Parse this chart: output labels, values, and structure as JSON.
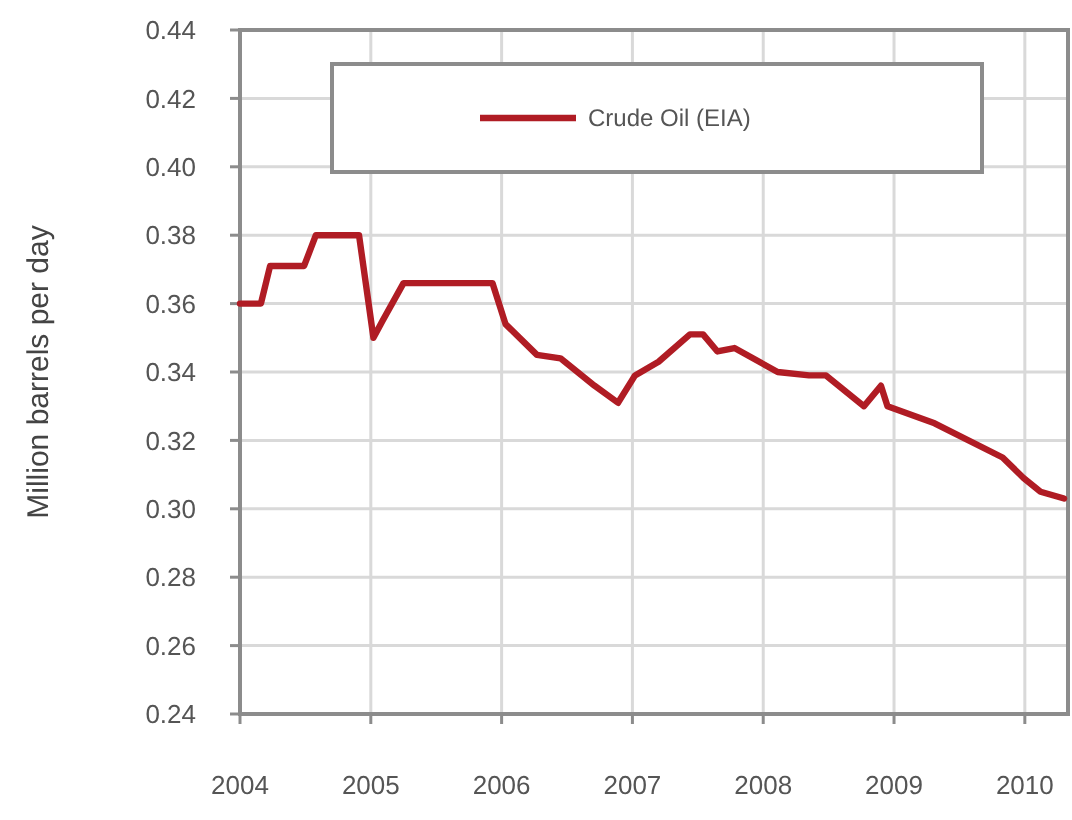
{
  "chart_data": {
    "type": "line",
    "ylabel": "Million barrels per day",
    "xlim": [
      2004,
      2010.33
    ],
    "xticks": [
      2004,
      2005,
      2006,
      2007,
      2008,
      2009,
      2010
    ],
    "ylim": [
      0.24,
      0.44
    ],
    "yticks": [
      0.24,
      0.26,
      0.28,
      {
        "value": 0.3,
        "label": "0.30"
      },
      0.32,
      0.34,
      0.36,
      0.38,
      {
        "value": 0.4,
        "label": "0.40"
      },
      0.42,
      0.44
    ],
    "grid": true,
    "legend": "top",
    "line_style": "solid",
    "marker": "none",
    "series": [
      {
        "name": "Crude Oil (EIA)",
        "color": "#b01c24",
        "x": [
          2004,
          2004.16,
          2004.23,
          2004.49,
          2004.58,
          2004.91,
          2005.02,
          2005.09,
          2005.25,
          2005.93,
          2006.03,
          2006.27,
          2006.45,
          2006.71,
          2006.89,
          2007.02,
          2007.2,
          2007.44,
          2007.54,
          2007.65,
          2007.78,
          2008.11,
          2008.35,
          2008.48,
          2008.77,
          2008.9,
          2008.95,
          2009.31,
          2009.83,
          2009.99,
          2010.12,
          2010.3
        ],
        "values": [
          0.36,
          0.36,
          0.371,
          0.371,
          0.38,
          0.38,
          0.35,
          0.355,
          0.366,
          0.366,
          0.354,
          0.345,
          0.344,
          0.336,
          0.331,
          0.339,
          0.343,
          0.351,
          0.351,
          0.346,
          0.347,
          0.34,
          0.339,
          0.339,
          0.33,
          0.336,
          0.33,
          0.325,
          0.315,
          0.309,
          0.305,
          0.303
        ]
      }
    ]
  }
}
